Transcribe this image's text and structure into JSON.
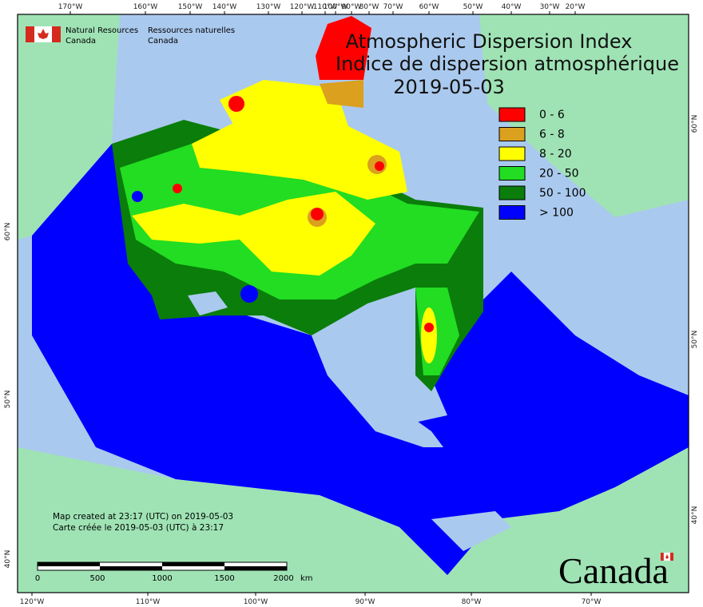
{
  "title": [
    "Atmospheric Dispersion Index",
    "Indice de dispersion atmosphérique"
  ],
  "date": "2019-05-03",
  "agency": {
    "en": [
      "Natural Resources",
      "Canada"
    ],
    "fr": [
      "Ressources naturelles",
      "Canada"
    ]
  },
  "legend": [
    {
      "label": "0 - 6",
      "color": "#ff0000"
    },
    {
      "label": "6 - 8",
      "color": "#daa01e"
    },
    {
      "label": "8 - 20",
      "color": "#ffff00"
    },
    {
      "label": "20 - 50",
      "color": "#22dd22"
    },
    {
      "label": "50 - 100",
      "color": "#0a7d0a"
    },
    {
      "label": "> 100",
      "color": "#0000ff"
    }
  ],
  "credits": [
    "Map created at 23:17 (UTC) on 2019-05-03",
    "Carte créée le 2019-05-03 (UTC) à 23:17"
  ],
  "scale": {
    "labels": [
      "0",
      "500",
      "1000",
      "1500",
      "2000"
    ],
    "unit": "km"
  },
  "graticule": {
    "top": [
      "170°W",
      "160°W",
      "150°W",
      "140°W",
      "130°W",
      "120°W",
      "110°W",
      "100°W",
      "90°W",
      "80°W",
      "70°W",
      "60°W",
      "50°W",
      "40°W",
      "30°W",
      "20°W"
    ],
    "bottom": [
      "120°W",
      "110°W",
      "100°W",
      "90°W",
      "80°W",
      "70°W"
    ],
    "left": [
      "60°N",
      "50°N",
      "40°N"
    ],
    "right": [
      "60°N",
      "50°N",
      "40°N"
    ]
  },
  "wordmark": "Canada"
}
